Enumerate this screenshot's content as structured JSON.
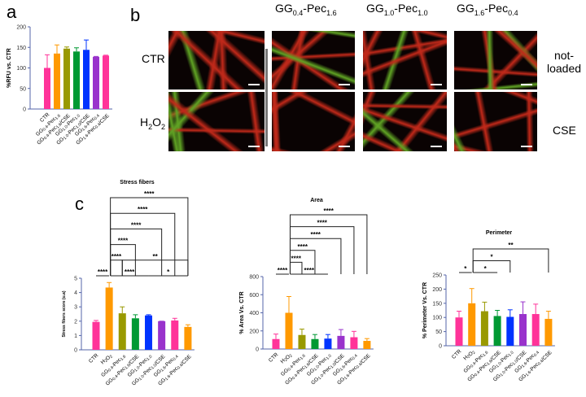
{
  "panel_labels": {
    "a": "a",
    "b": "b",
    "c": "c"
  },
  "panel_b": {
    "columns": [
      {
        "pre": "GG",
        "s1": "0.4",
        "mid": "-Pec",
        "s2": "1.6"
      },
      {
        "pre": "GG",
        "s1": "1.0",
        "mid": "-Pec",
        "s2": "1.0"
      },
      {
        "pre": "GG",
        "s1": "1.6",
        "mid": "-Pec",
        "s2": "0.4"
      }
    ],
    "rows": [
      "CTR",
      "H2O2"
    ],
    "right_labels": [
      "not-\nloaded",
      "CSE"
    ],
    "image_description_colors": {
      "actin": "#e0301e",
      "marker": "#6fbf2a",
      "background": "#0a0303"
    }
  },
  "chart_data": [
    {
      "id": "a",
      "type": "bar",
      "title": "",
      "ylabel": "%RFU vs. CTR",
      "ylim": [
        0,
        200
      ],
      "yticks": [
        0,
        50,
        100,
        150,
        200
      ],
      "categories": [
        "CTR",
        "GG0.4-Pec1.6",
        "GG0.4-Pec1.6/CSE",
        "GG1.0-Pec1.0",
        "GG1.0-Pec1.0/CSE",
        "GG1.6-Pec0.4",
        "GG1.6-Pec0.4/CSE"
      ],
      "values": [
        100,
        135,
        147,
        140,
        144,
        127,
        130
      ],
      "errors": [
        32,
        21,
        4,
        9,
        24,
        1,
        1
      ],
      "colors": [
        "#ff3399",
        "#ff9900",
        "#999900",
        "#009933",
        "#0033ff",
        "#9933cc",
        "#ff3399"
      ],
      "brackets": []
    },
    {
      "id": "stress",
      "type": "bar",
      "title": "Stress fibers",
      "ylabel": "Stress fibers score (u.a)",
      "ylim": [
        0,
        5
      ],
      "yticks": [
        0,
        1,
        2,
        3,
        4,
        5
      ],
      "categories": [
        "CTR",
        "H2O2",
        "GG0.4-Pec1.6",
        "GG0.4-Pec1.6/CSE",
        "GG1.0-Pec1.0",
        "GG1.0-Pec1.0/CSE",
        "GG1.6-Pec0.4",
        "GG1.6-Pec0.4/CSE"
      ],
      "values": [
        1.95,
        4.35,
        2.55,
        2.2,
        2.4,
        2.0,
        2.05,
        1.6
      ],
      "errors": [
        0.1,
        0.35,
        0.45,
        0.25,
        0.05,
        0,
        0.15,
        0.15
      ],
      "colors": [
        "#ff3399",
        "#ff9900",
        "#999900",
        "#009933",
        "#0033ff",
        "#9933cc",
        "#ff3399",
        "#ff9900"
      ],
      "brackets": [
        {
          "from": 0,
          "to": 1,
          "label": "****"
        },
        {
          "from": 1,
          "to": 4,
          "label": "****"
        },
        {
          "from": 4,
          "to": 7,
          "label": "*"
        },
        {
          "from": 1,
          "to": 2,
          "label": "****"
        },
        {
          "from": 2,
          "to": 7,
          "label": "**"
        },
        {
          "from": 1,
          "to": 3,
          "label": "****"
        },
        {
          "from": 1,
          "to": 5,
          "label": "****"
        },
        {
          "from": 1,
          "to": 6,
          "label": "****"
        },
        {
          "from": 1,
          "to": 7,
          "label": "****"
        }
      ]
    },
    {
      "id": "area",
      "type": "bar",
      "title": "Area",
      "ylabel": "% Area Vs. CTR",
      "ylim": [
        0,
        800
      ],
      "yticks": [
        0,
        200,
        400,
        600,
        800
      ],
      "categories": [
        "CTR",
        "H2O2",
        "GG0.4-Pec1.6",
        "GG0.4-Pec1.6/CSE",
        "GG1.0-Pec1.0",
        "GG1.0-Pec1.0/CSE",
        "GG1.6-Pec0.4",
        "GG1.6-Pec0.4/CSE"
      ],
      "values": [
        110,
        400,
        155,
        110,
        115,
        145,
        130,
        90
      ],
      "errors": [
        55,
        180,
        65,
        50,
        45,
        70,
        65,
        25
      ],
      "colors": [
        "#ff3399",
        "#ff9900",
        "#999900",
        "#009933",
        "#0033ff",
        "#9933cc",
        "#ff3399",
        "#ff9900"
      ],
      "brackets": [
        {
          "from": 0,
          "to": 1,
          "label": "****"
        },
        {
          "from": 1,
          "to": 4,
          "label": "****"
        },
        {
          "from": 1,
          "to": 2,
          "label": "****"
        },
        {
          "from": 1,
          "to": 3,
          "label": "****"
        },
        {
          "from": 1,
          "to": 5,
          "label": "****"
        },
        {
          "from": 1,
          "to": 6,
          "label": "****"
        },
        {
          "from": 1,
          "to": 7,
          "label": "****"
        }
      ]
    },
    {
      "id": "perim",
      "type": "bar",
      "title": "Perimeter",
      "ylabel": "% Perimeter Vs. CTR",
      "ylim": [
        0,
        250
      ],
      "yticks": [
        0,
        50,
        100,
        150,
        200,
        250
      ],
      "categories": [
        "CTR",
        "H2O2",
        "GG0.4-Pec1.6",
        "GG0.4-Pec1.6/CSE",
        "GG1.0-Pec1.0",
        "GG1.0-Pec1.0/CSE",
        "GG1.6-Pec0.4",
        "GG1.6-Pec0.4/CSE"
      ],
      "values": [
        100,
        150,
        122,
        105,
        102,
        112,
        112,
        95
      ],
      "errors": [
        22,
        52,
        32,
        20,
        25,
        43,
        35,
        27
      ],
      "colors": [
        "#ff3399",
        "#ff9900",
        "#999900",
        "#009933",
        "#0033ff",
        "#9933cc",
        "#ff3399",
        "#ff9900"
      ],
      "brackets": [
        {
          "from": 0,
          "to": 1,
          "label": "*"
        },
        {
          "from": 1,
          "to": 3,
          "label": "*"
        },
        {
          "from": 1,
          "to": 4,
          "label": "*"
        },
        {
          "from": 1,
          "to": 7,
          "label": "**"
        }
      ]
    }
  ]
}
